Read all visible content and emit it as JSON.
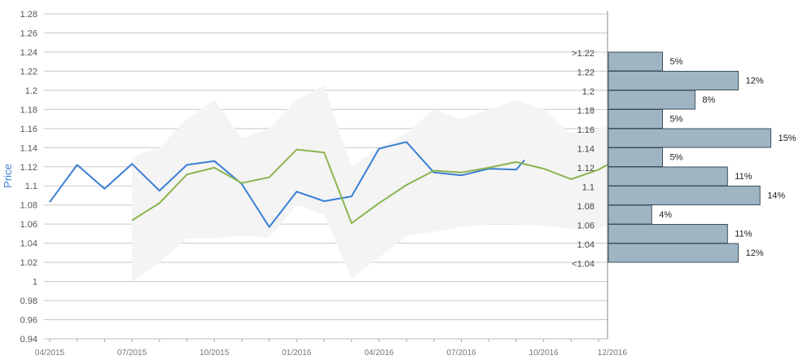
{
  "chart_data": {
    "type": "line",
    "ylabel": "Price",
    "ylim": [
      0.94,
      1.28
    ],
    "yticks": [
      "0.94",
      "0.96",
      "0.98",
      "1",
      "1.02",
      "1.04",
      "1.06",
      "1.08",
      "1.1",
      "1.12",
      "1.14",
      "1.16",
      "1.18",
      "1.2",
      "1.22",
      "1.24",
      "1.26",
      "1.28"
    ],
    "x_tick_labels": [
      "04/2015",
      "07/2015",
      "10/2015",
      "01/2016",
      "04/2016",
      "07/2016",
      "10/2016",
      "12/2016"
    ],
    "x_tick_months": [
      0,
      3,
      6,
      9,
      12,
      15,
      18,
      20.5
    ],
    "x_minor_months": [
      0,
      1,
      2,
      3,
      4,
      5,
      6,
      7,
      8,
      9,
      10,
      11,
      12,
      13,
      14,
      15,
      16,
      17,
      18,
      19,
      20
    ],
    "x_range_months": [
      -0.2,
      20.5
    ],
    "grid": true,
    "band": {
      "upper": [
        [
          3,
          1.13
        ],
        [
          4,
          1.14
        ],
        [
          5,
          1.17
        ],
        [
          6,
          1.19
        ],
        [
          7,
          1.15
        ],
        [
          8,
          1.16
        ],
        [
          9,
          1.19
        ],
        [
          10,
          1.205
        ],
        [
          11,
          1.12
        ],
        [
          12,
          1.14
        ],
        [
          13,
          1.155
        ],
        [
          14,
          1.18
        ],
        [
          15,
          1.17
        ],
        [
          16,
          1.18
        ],
        [
          17,
          1.19
        ],
        [
          18,
          1.18
        ],
        [
          19,
          1.155
        ],
        [
          20,
          1.16
        ],
        [
          20.5,
          1.165
        ]
      ],
      "lower": [
        [
          3,
          1.0
        ],
        [
          4,
          1.02
        ],
        [
          5,
          1.045
        ],
        [
          6,
          1.045
        ],
        [
          7,
          1.048
        ],
        [
          8,
          1.046
        ],
        [
          9,
          1.08
        ],
        [
          10,
          1.07
        ],
        [
          11,
          1.003
        ],
        [
          12,
          1.025
        ],
        [
          13,
          1.048
        ],
        [
          14,
          1.052
        ],
        [
          15,
          1.057
        ],
        [
          16,
          1.06
        ],
        [
          17,
          1.06
        ],
        [
          18,
          1.058
        ],
        [
          19,
          1.055
        ],
        [
          20,
          1.055
        ],
        [
          20.5,
          1.06
        ]
      ],
      "color": "#f4f4f4"
    },
    "series": [
      {
        "color": "#3a7fd4",
        "x": [
          0,
          1,
          2,
          3,
          4,
          5,
          6,
          7,
          8,
          9,
          10,
          11,
          12,
          13,
          14,
          15,
          16,
          17,
          17.3
        ],
        "values": [
          1.083,
          1.122,
          1.097,
          1.123,
          1.095,
          1.122,
          1.126,
          1.102,
          1.057,
          1.094,
          1.084,
          1.089,
          1.139,
          1.146,
          1.114,
          1.111,
          1.118,
          1.117,
          1.127
        ]
      },
      {
        "color": "#8ab44e",
        "x": [
          3,
          4,
          5,
          6,
          7,
          8,
          9,
          10,
          11,
          12,
          13,
          14,
          15,
          16,
          17,
          18,
          19,
          20,
          20.5
        ],
        "values": [
          1.064,
          1.082,
          1.112,
          1.119,
          1.103,
          1.109,
          1.138,
          1.135,
          1.061,
          1.082,
          1.101,
          1.116,
          1.114,
          1.119,
          1.125,
          1.118,
          1.107,
          1.117,
          1.125
        ]
      }
    ],
    "distribution": {
      "bar_color": "#9fb5c4",
      "bar_border": "#3e4f5c",
      "bins": [
        {
          "label": ">1.22",
          "pct": 5,
          "text": "5%"
        },
        {
          "label": "1.22",
          "pct": 12,
          "text": "12%"
        },
        {
          "label": "1.2",
          "pct": 8,
          "text": "8%"
        },
        {
          "label": "1.18",
          "pct": 5,
          "text": "5%"
        },
        {
          "label": "1.16",
          "pct": 15,
          "text": "15%"
        },
        {
          "label": "1.14",
          "pct": 5,
          "text": "5%"
        },
        {
          "label": "1.12",
          "pct": 11,
          "text": "11%"
        },
        {
          "label": "1.1",
          "pct": 14,
          "text": "14%"
        },
        {
          "label": "1.08",
          "pct": 4,
          "text": "4%"
        },
        {
          "label": "1.06",
          "pct": 11,
          "text": "11%"
        },
        {
          "label": "1.04",
          "pct": 12,
          "text": "12%"
        },
        {
          "label": "<1.04",
          "pct": 0,
          "text": ""
        }
      ]
    }
  }
}
